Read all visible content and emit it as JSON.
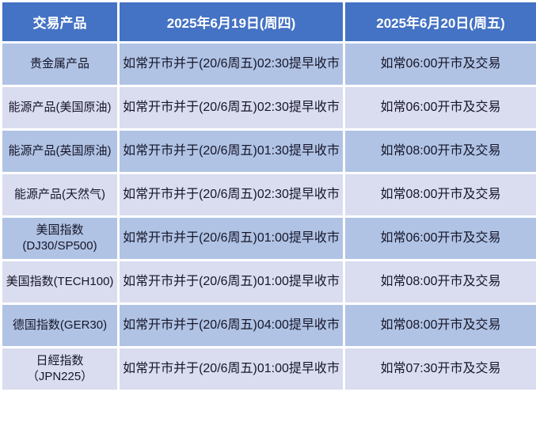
{
  "colors": {
    "header-bg": "#4472c4",
    "row-odd-bg": "#b0c3e4",
    "row-even-bg": "#dadcef",
    "grid": "#ffffff",
    "header-text": "#ffffff",
    "body-text": "#16162a"
  },
  "table": {
    "headers": {
      "product": "交易产品",
      "day1": "2025年6月19日(周四)",
      "day2": "2025年6月20日(周五)"
    },
    "rows": [
      {
        "product": "贵金属产品",
        "day1": "如常开市并于(20/6周五)02:30提早收市",
        "day2": "如常06:00开市及交易"
      },
      {
        "product": "能源产品(美国原油)",
        "day1": "如常开市并于(20/6周五)02:30提早收市",
        "day2": "如常06:00开市及交易"
      },
      {
        "product": "能源产品(英国原油)",
        "day1": "如常开市并于(20/6周五)01:30提早收市",
        "day2": "如常08:00开市及交易"
      },
      {
        "product": "能源产品(天然气)",
        "day1": "如常开市并于(20/6周五)02:30提早收市",
        "day2": "如常08:00开市及交易"
      },
      {
        "product": "美国指数\n(DJ30/SP500)",
        "day1": "如常开市并于(20/6周五)01:00提早收市",
        "day2": "如常06:00开市及交易"
      },
      {
        "product": "美国指数(TECH100)",
        "day1": "如常开市并于(20/6周五)01:00提早收市",
        "day2": "如常08:00开市及交易"
      },
      {
        "product": "德国指数(GER30)",
        "day1": "如常开市并于(20/6周五)04:00提早收市",
        "day2": "如常08:00开市及交易"
      },
      {
        "product": "日經指数 （JPN225）",
        "day1": "如常开市并于(20/6周五)01:00提早收市",
        "day2": "如常07:30开市及交易"
      }
    ]
  }
}
